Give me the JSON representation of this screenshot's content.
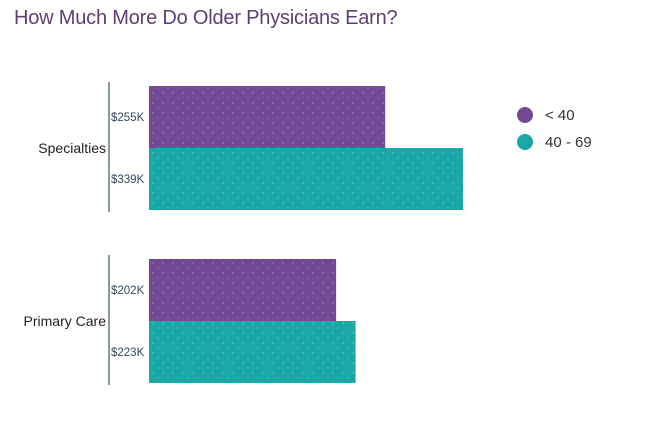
{
  "title": "How Much More Do Older Physicians Earn?",
  "colors": {
    "under40": "#734894",
    "age40_69": "#1aa8a6",
    "title": "#5e3f74",
    "axis": "#8a9aa2"
  },
  "chart_data": {
    "type": "bar",
    "orientation": "horizontal",
    "title": "How Much More Do Older Physicians Earn?",
    "categories": [
      "Specialties",
      "Primary Care"
    ],
    "series": [
      {
        "name": "< 40",
        "values": [
          255,
          202
        ],
        "labels": [
          "$255K",
          "$202K"
        ],
        "color": "#734894"
      },
      {
        "name": "40 - 69",
        "values": [
          339,
          223
        ],
        "labels": [
          "$339K",
          "$223K"
        ],
        "color": "#1aa8a6"
      }
    ],
    "unit": "$K",
    "xlim": [
      0,
      350
    ],
    "legend": "right",
    "grid": false
  }
}
